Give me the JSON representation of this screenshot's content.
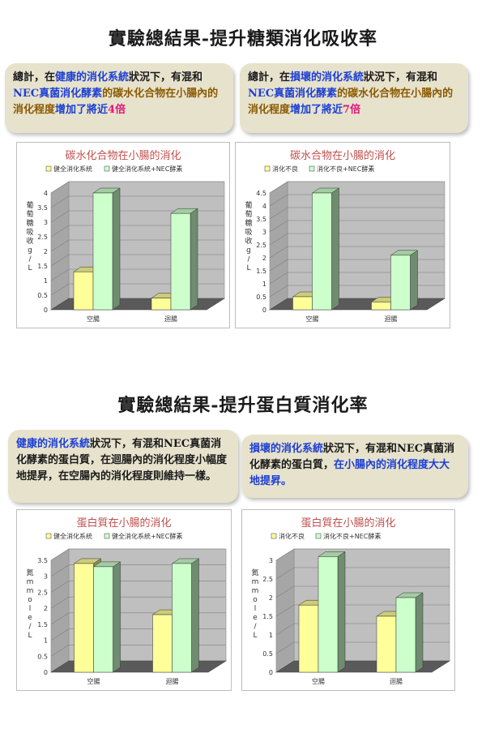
{
  "section1": {
    "title": "實驗總結果-提升糖類消化吸收率",
    "note_left": {
      "p1": "總計，在",
      "p2": "健康的消化系統",
      "p3": "狀況下，有混和",
      "p4": "NEC真菌消化酵素",
      "p5": "的碳水化合物在小腸內的消化程度",
      "p6": "增加了將近",
      "p7": "4倍"
    },
    "note_right": {
      "p1": "總計，在",
      "p2": "損壞的消化系統",
      "p3": "狀況下，有混和",
      "p4": "NEC真菌消化酵素",
      "p5": "的碳水化合物在小腸內的消化程度",
      "p6": "增加了將近",
      "p7": "7倍"
    }
  },
  "section2": {
    "title": "實驗總結果-提升蛋白質消化率",
    "note_left": {
      "p1": "健康的消化系統",
      "p2": "狀況下，有混和NEC真菌消化酵素的蛋白質，在迴腸內的消化程度小幅度地提昇，在空腸內的消化程度則維持一樣。"
    },
    "note_right": {
      "p1": "損壞的消化系統",
      "p2": "狀況下，有混和NEC真菌消化酵素的蛋白質，",
      "p3": "在小腸內的消化程度大大地提昇。"
    }
  },
  "colors": {
    "series_a": "#ffff99",
    "series_b": "#ccffcc",
    "title_red": "#c0504d",
    "note_bg": "#e7e2cc",
    "blue_text": "#1c3fd4",
    "pink_text": "#e0157a"
  },
  "chart_data": [
    {
      "type": "bar",
      "title_parts": [
        "碳水化合物在",
        "小腸",
        "的消化"
      ],
      "categories": [
        "空腸",
        "迴腸"
      ],
      "series": [
        {
          "name": "健全消化系統",
          "values": [
            1.3,
            0.4
          ]
        },
        {
          "name": "健全消化系統+NEC酵素",
          "values": [
            4.0,
            3.3
          ]
        }
      ],
      "ylabel": "葡萄糖吸收 g/L",
      "ylim": [
        0,
        4
      ],
      "yticks": [
        "0",
        "0.5",
        "1",
        "1.5",
        "2",
        "2.5",
        "3",
        "3.5",
        "4"
      ],
      "grid": true,
      "legend": "top"
    },
    {
      "type": "bar",
      "title_parts": [
        "碳水合物在",
        "小腸",
        "的消化"
      ],
      "categories": [
        "空腸",
        "迴腸"
      ],
      "series": [
        {
          "name": "消化不良",
          "values": [
            0.5,
            0.3
          ]
        },
        {
          "name": "消化不良+NEC酵素",
          "values": [
            4.5,
            2.1
          ]
        }
      ],
      "ylabel": "葡萄糖吸收 g/L",
      "ylim": [
        0,
        4.5
      ],
      "yticks": [
        "0",
        "0.5",
        "1",
        "1.5",
        "2",
        "2.5",
        "3",
        "3.5",
        "4",
        "4.5"
      ],
      "grid": true,
      "legend": "top"
    },
    {
      "type": "bar",
      "title_parts": [
        "蛋白質在小腸的消化"
      ],
      "categories": [
        "空腸",
        "迴腸"
      ],
      "series": [
        {
          "name": "健全消化系統",
          "values": [
            3.4,
            1.8
          ]
        },
        {
          "name": "健全消化系統+NEC酵素",
          "values": [
            3.3,
            3.4
          ]
        }
      ],
      "ylabel": "氮 mmole/L",
      "ylim": [
        0,
        3.5
      ],
      "yticks": [
        "0",
        "0.5",
        "1",
        "1.5",
        "2",
        "2.5",
        "3",
        "3.5"
      ],
      "grid": true,
      "legend": "top"
    },
    {
      "type": "bar",
      "title_parts": [
        "蛋白質在小腸的消化"
      ],
      "categories": [
        "空腸",
        "迴腸"
      ],
      "series": [
        {
          "name": "消化不良",
          "values": [
            1.8,
            1.5
          ]
        },
        {
          "name": "消化不良+NEC酵素",
          "values": [
            3.1,
            2.0
          ]
        }
      ],
      "ylabel": "氮 mmole/L",
      "ylim": [
        0,
        3
      ],
      "yticks": [
        "0",
        "0.5",
        "1",
        "1.5",
        "2",
        "2.5",
        "3"
      ],
      "grid": true,
      "legend": "top"
    }
  ]
}
